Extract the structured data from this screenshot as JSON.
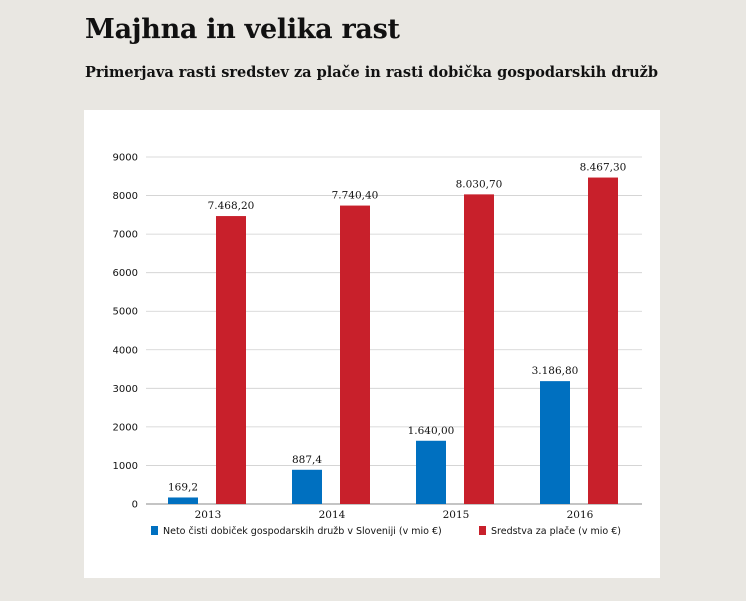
{
  "title": "Majhna in velika rast",
  "subtitle": "Primerjava rasti sredstev za plače in rasti dobička gospodarskih družb",
  "chart_data": {
    "type": "bar",
    "categories": [
      "2013",
      "2014",
      "2015",
      "2016"
    ],
    "series": [
      {
        "name": "Neto čisti dobiček gospodarskih družb v Sloveniji (v mio €)",
        "color": "#0070c0",
        "values": [
          169.2,
          887.4,
          1640.0,
          3186.8
        ],
        "labels": [
          "169,2",
          "887,4",
          "1.640,00",
          "3.186,80"
        ]
      },
      {
        "name": "Sredstva za plače (v mio €)",
        "color": "#c8202b",
        "values": [
          7468.2,
          7740.4,
          8030.7,
          8467.3
        ],
        "labels": [
          "7.468,20",
          "7.740,40",
          "8.030,70",
          "8.467,30"
        ]
      }
    ],
    "yticks": [
      "0",
      "1000",
      "2000",
      "3000",
      "4000",
      "5000",
      "6000",
      "7000",
      "8000",
      "9000"
    ],
    "ylim": [
      0,
      9000
    ],
    "grid": true,
    "legend_position": "bottom"
  }
}
